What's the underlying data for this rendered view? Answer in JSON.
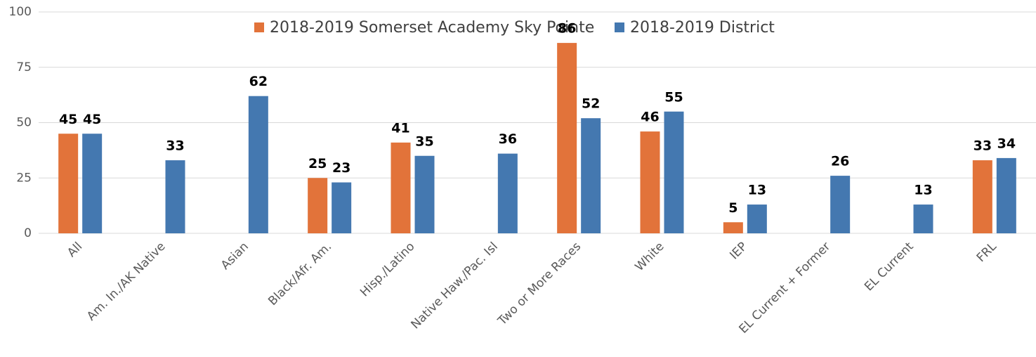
{
  "chart_data": {
    "type": "bar",
    "categories": [
      "All",
      "Am. In./AK Native",
      "Asian",
      "Black/Afr. Am.",
      "Hisp./Latino",
      "Native Haw./Pac. Isl",
      "Two or More Races",
      "White",
      "IEP",
      "EL Current + Former",
      "EL Current",
      "FRL"
    ],
    "series": [
      {
        "name": "2018-2019 Somerset Academy Sky Pointe",
        "color": "#e2733a",
        "values": [
          45,
          null,
          null,
          25,
          41,
          null,
          86,
          46,
          5,
          null,
          null,
          33
        ]
      },
      {
        "name": "2018-2019 District",
        "color": "#4478b0",
        "values": [
          45,
          33,
          62,
          23,
          35,
          36,
          52,
          55,
          13,
          26,
          13,
          34
        ]
      }
    ],
    "ylim": [
      0,
      100
    ],
    "yticks": [
      0,
      25,
      50,
      75,
      100
    ],
    "grid": true,
    "legend": "top"
  }
}
